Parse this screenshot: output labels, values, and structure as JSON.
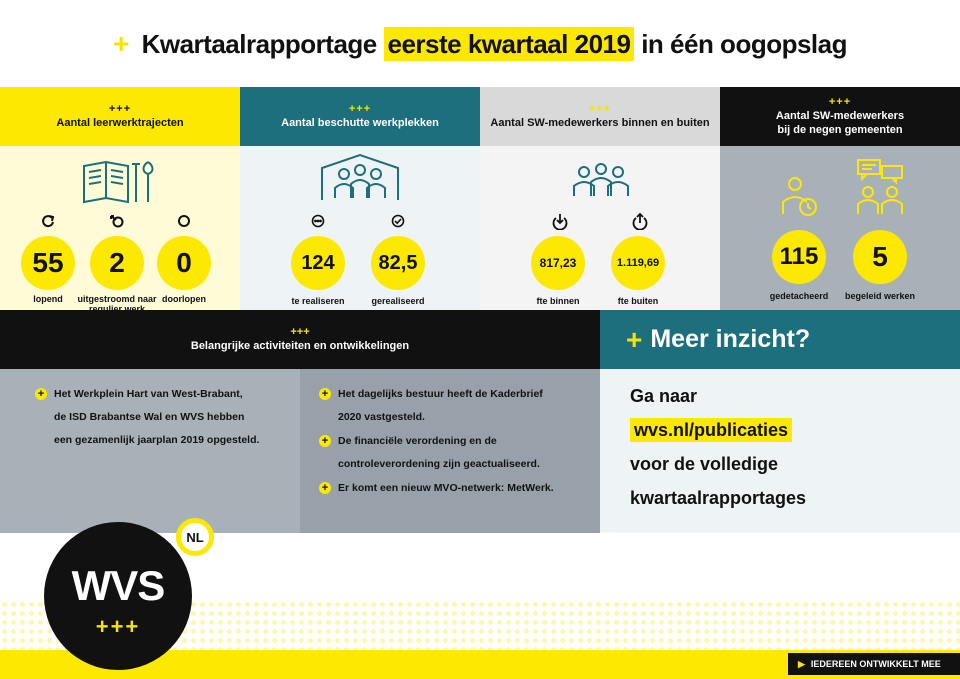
{
  "title": {
    "plus": "+",
    "part1": "Kwartaalrapportage",
    "highlight": "eerste kwartaal 2019",
    "part2": "in één oogopslag"
  },
  "columns": [
    {
      "ppp": "+++",
      "heading": "Aantal leerwerktrajecten",
      "icon": "book-tools-icon",
      "stats": [
        {
          "value": "55",
          "label": "lopend",
          "icon": "refresh-icon"
        },
        {
          "value": "2",
          "label": "uitgestroomd naar regulier werk",
          "icon": "exit-icon"
        },
        {
          "value": "0",
          "label": "doorlopen",
          "icon": "circle-icon"
        }
      ]
    },
    {
      "ppp": "+++",
      "heading": "Aantal beschutte werkplekken",
      "icon": "people-shelter-icon",
      "stats": [
        {
          "value": "124",
          "label": "te realiseren",
          "icon": "ellipsis-icon"
        },
        {
          "value": "82,5",
          "label": "gerealiseerd",
          "icon": "check-icon"
        }
      ]
    },
    {
      "ppp": "+++",
      "heading": "Aantal SW-medewerkers binnen en buiten",
      "icon": "group-icon",
      "stats": [
        {
          "value": "817,23",
          "label": "fte binnen",
          "icon": "arrow-down-icon"
        },
        {
          "value": "1.119,69",
          "label": "fte buiten",
          "icon": "arrow-up-icon"
        }
      ]
    },
    {
      "ppp": "+++",
      "heading_line1": "Aantal SW-medewerkers",
      "heading_line2": "bij de negen gemeenten",
      "icons": [
        "person-clock-icon",
        "people-chat-icon"
      ],
      "stats": [
        {
          "value": "115",
          "label": "gedetacheerd"
        },
        {
          "value": "5",
          "label": "begeleid werken"
        }
      ]
    }
  ],
  "activities": {
    "ppp": "+++",
    "heading": "Belangrijke activiteiten en ontwikkelingen",
    "left": [
      "Het Werkplein Hart van West-Brabant,",
      "de ISD Brabantse Wal en WVS hebben",
      "een gezamenlijk jaarplan 2019 opgesteld."
    ],
    "right": [
      {
        "line1": "Het dagelijks bestuur heeft de Kaderbrief",
        "line2": "2020 vastgesteld."
      },
      {
        "line1": "De financiële verordening en de",
        "line2": "controleverordening zijn geactualiseerd."
      },
      {
        "line1": "Er komt een nieuw MVO-netwerk: MetWerk.",
        "line2": ""
      }
    ]
  },
  "meer": {
    "plus": "+",
    "heading": "Meer inzicht?",
    "line1": "Ga naar",
    "link": "wvs.nl/publicaties",
    "line3": "voor de volledige",
    "line4": "kwartaalrapportages"
  },
  "logo": {
    "text": "WVS",
    "plus": "+++",
    "badge": "NL"
  },
  "cta": {
    "text": "IEDEREEN ONTWIKKELT MEE"
  },
  "colors": {
    "yellow": "#fce800",
    "teal": "#1e6f7e",
    "grey": "#a9b1b8",
    "black": "#111111"
  }
}
